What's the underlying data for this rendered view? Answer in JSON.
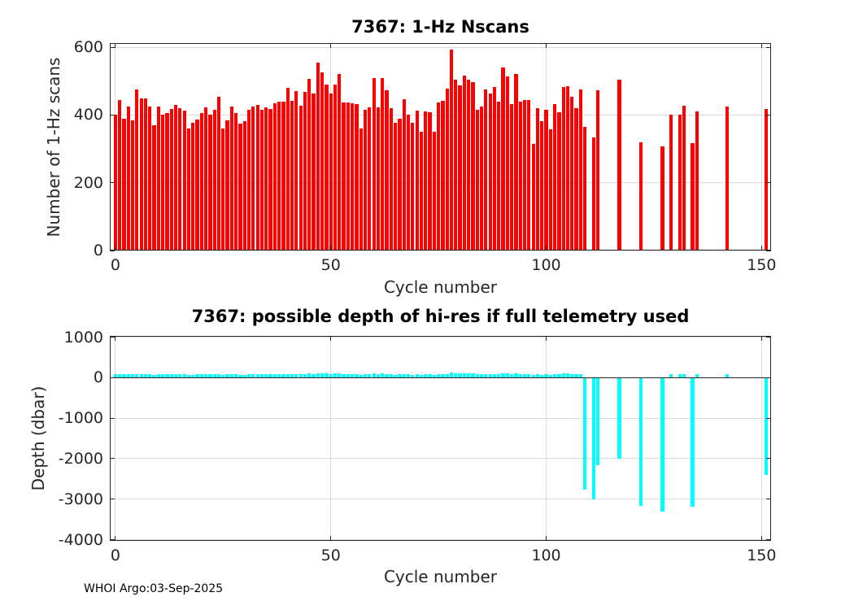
{
  "figure": {
    "footer": "WHOI Argo:03-Sep-2025",
    "colors": {
      "background": "#ffffff",
      "axis": "#262626",
      "grid": "#dbdbdb",
      "nscans_bar": "#ff0000",
      "depth_bar": "#00ffff"
    }
  },
  "chart_data": [
    {
      "type": "bar",
      "title": "7367: 1-Hz Nscans",
      "xlabel": "Cycle number",
      "ylabel": "Number of 1-Hz scans",
      "xlim": [
        -1.3,
        152.2
      ],
      "ylim": [
        0,
        612
      ],
      "xticks": [
        0,
        50,
        100,
        150
      ],
      "yticks": [
        0,
        200,
        400,
        600
      ],
      "grid": true,
      "legend": null,
      "bar_color": "#ff0000",
      "points": [
        [
          0,
          400
        ],
        [
          1,
          443
        ],
        [
          2,
          388
        ],
        [
          3,
          424
        ],
        [
          4,
          384
        ],
        [
          5,
          475
        ],
        [
          6,
          449
        ],
        [
          7,
          449
        ],
        [
          8,
          426
        ],
        [
          9,
          370
        ],
        [
          10,
          425
        ],
        [
          11,
          400
        ],
        [
          12,
          406
        ],
        [
          13,
          418
        ],
        [
          14,
          429
        ],
        [
          15,
          421
        ],
        [
          16,
          414
        ],
        [
          17,
          360
        ],
        [
          18,
          376
        ],
        [
          19,
          386
        ],
        [
          20,
          406
        ],
        [
          21,
          422
        ],
        [
          22,
          402
        ],
        [
          23,
          416
        ],
        [
          24,
          453
        ],
        [
          25,
          361
        ],
        [
          26,
          384
        ],
        [
          27,
          424
        ],
        [
          28,
          406
        ],
        [
          29,
          374
        ],
        [
          30,
          382
        ],
        [
          31,
          416
        ],
        [
          32,
          424
        ],
        [
          33,
          429
        ],
        [
          34,
          415
        ],
        [
          35,
          422
        ],
        [
          36,
          418
        ],
        [
          37,
          434
        ],
        [
          38,
          439
        ],
        [
          39,
          439
        ],
        [
          40,
          480
        ],
        [
          41,
          442
        ],
        [
          42,
          471
        ],
        [
          43,
          427
        ],
        [
          44,
          468
        ],
        [
          45,
          507
        ],
        [
          46,
          463
        ],
        [
          47,
          555
        ],
        [
          48,
          525
        ],
        [
          49,
          490
        ],
        [
          50,
          464
        ],
        [
          51,
          489
        ],
        [
          52,
          520
        ],
        [
          53,
          436
        ],
        [
          54,
          436
        ],
        [
          55,
          434
        ],
        [
          56,
          432
        ],
        [
          57,
          360
        ],
        [
          58,
          416
        ],
        [
          59,
          422
        ],
        [
          60,
          510
        ],
        [
          61,
          422
        ],
        [
          62,
          508
        ],
        [
          63,
          474
        ],
        [
          64,
          420
        ],
        [
          65,
          378
        ],
        [
          66,
          388
        ],
        [
          67,
          446
        ],
        [
          68,
          400
        ],
        [
          69,
          376
        ],
        [
          70,
          414
        ],
        [
          71,
          350
        ],
        [
          72,
          410
        ],
        [
          73,
          408
        ],
        [
          74,
          350
        ],
        [
          75,
          436
        ],
        [
          76,
          442
        ],
        [
          77,
          478
        ],
        [
          78,
          592
        ],
        [
          79,
          504
        ],
        [
          80,
          488
        ],
        [
          81,
          516
        ],
        [
          82,
          504
        ],
        [
          83,
          498
        ],
        [
          84,
          416
        ],
        [
          85,
          424
        ],
        [
          86,
          475
        ],
        [
          87,
          464
        ],
        [
          88,
          482
        ],
        [
          89,
          439
        ],
        [
          90,
          541
        ],
        [
          91,
          514
        ],
        [
          92,
          432
        ],
        [
          93,
          520
        ],
        [
          94,
          440
        ],
        [
          95,
          445
        ],
        [
          96,
          443
        ],
        [
          97,
          314
        ],
        [
          98,
          420
        ],
        [
          99,
          382
        ],
        [
          100,
          416
        ],
        [
          101,
          358
        ],
        [
          102,
          431
        ],
        [
          103,
          408
        ],
        [
          104,
          483
        ],
        [
          105,
          485
        ],
        [
          106,
          453
        ],
        [
          107,
          419
        ],
        [
          108,
          475
        ],
        [
          109,
          366
        ],
        [
          111,
          334
        ],
        [
          112,
          472
        ],
        [
          117,
          505
        ],
        [
          122,
          320
        ],
        [
          127,
          308
        ],
        [
          129,
          400
        ],
        [
          131,
          400
        ],
        [
          132,
          428
        ],
        [
          134,
          318
        ],
        [
          135,
          410
        ],
        [
          142,
          424
        ],
        [
          151,
          417
        ]
      ]
    },
    {
      "type": "bar",
      "title": "7367: possible depth of hi-res if full telemetry used",
      "xlabel": "Cycle number",
      "ylabel": "Depth (dbar)",
      "xlim": [
        -1.3,
        152.2
      ],
      "ylim": [
        -4030,
        1030
      ],
      "xticks": [
        0,
        50,
        100,
        150
      ],
      "yticks": [
        1000,
        0,
        -1000,
        -2000,
        -3000,
        -4000
      ],
      "grid": true,
      "legend": null,
      "bar_color": "#00ffff",
      "points": [
        [
          0,
          80
        ],
        [
          1,
          89
        ],
        [
          2,
          78
        ],
        [
          3,
          85
        ],
        [
          4,
          77
        ],
        [
          5,
          95
        ],
        [
          6,
          90
        ],
        [
          7,
          90
        ],
        [
          8,
          85
        ],
        [
          9,
          74
        ],
        [
          10,
          85
        ],
        [
          11,
          80
        ],
        [
          12,
          81
        ],
        [
          13,
          84
        ],
        [
          14,
          86
        ],
        [
          15,
          84
        ],
        [
          16,
          83
        ],
        [
          17,
          72
        ],
        [
          18,
          75
        ],
        [
          19,
          77
        ],
        [
          20,
          81
        ],
        [
          21,
          84
        ],
        [
          22,
          80
        ],
        [
          23,
          83
        ],
        [
          24,
          91
        ],
        [
          25,
          72
        ],
        [
          26,
          77
        ],
        [
          27,
          85
        ],
        [
          28,
          81
        ],
        [
          29,
          75
        ],
        [
          30,
          76
        ],
        [
          31,
          83
        ],
        [
          32,
          85
        ],
        [
          33,
          86
        ],
        [
          34,
          83
        ],
        [
          35,
          84
        ],
        [
          36,
          84
        ],
        [
          37,
          87
        ],
        [
          38,
          88
        ],
        [
          39,
          88
        ],
        [
          40,
          96
        ],
        [
          41,
          88
        ],
        [
          42,
          94
        ],
        [
          43,
          85
        ],
        [
          44,
          94
        ],
        [
          45,
          101
        ],
        [
          46,
          93
        ],
        [
          47,
          111
        ],
        [
          48,
          105
        ],
        [
          49,
          98
        ],
        [
          50,
          93
        ],
        [
          51,
          98
        ],
        [
          52,
          104
        ],
        [
          53,
          87
        ],
        [
          54,
          87
        ],
        [
          55,
          87
        ],
        [
          56,
          86
        ],
        [
          57,
          72
        ],
        [
          58,
          83
        ],
        [
          59,
          84
        ],
        [
          60,
          102
        ],
        [
          61,
          84
        ],
        [
          62,
          102
        ],
        [
          63,
          95
        ],
        [
          64,
          84
        ],
        [
          65,
          76
        ],
        [
          66,
          78
        ],
        [
          67,
          89
        ],
        [
          68,
          80
        ],
        [
          69,
          75
        ],
        [
          70,
          83
        ],
        [
          71,
          70
        ],
        [
          72,
          82
        ],
        [
          73,
          82
        ],
        [
          74,
          70
        ],
        [
          75,
          87
        ],
        [
          76,
          88
        ],
        [
          77,
          96
        ],
        [
          78,
          118
        ],
        [
          79,
          101
        ],
        [
          80,
          98
        ],
        [
          81,
          103
        ],
        [
          82,
          101
        ],
        [
          83,
          100
        ],
        [
          84,
          83
        ],
        [
          85,
          85
        ],
        [
          86,
          95
        ],
        [
          87,
          93
        ],
        [
          88,
          96
        ],
        [
          89,
          88
        ],
        [
          90,
          108
        ],
        [
          91,
          103
        ],
        [
          92,
          86
        ],
        [
          93,
          104
        ],
        [
          94,
          88
        ],
        [
          95,
          89
        ],
        [
          96,
          89
        ],
        [
          97,
          63
        ],
        [
          98,
          84
        ],
        [
          99,
          76
        ],
        [
          100,
          83
        ],
        [
          101,
          72
        ],
        [
          102,
          86
        ],
        [
          103,
          82
        ],
        [
          104,
          97
        ],
        [
          105,
          97
        ],
        [
          106,
          91
        ],
        [
          107,
          84
        ],
        [
          108,
          95
        ],
        [
          109,
          -2767
        ],
        [
          111,
          -3000
        ],
        [
          112,
          -2153
        ],
        [
          117,
          -2000
        ],
        [
          122,
          -3167
        ],
        [
          127,
          -3300
        ],
        [
          129,
          80
        ],
        [
          131,
          80
        ],
        [
          132,
          86
        ],
        [
          134,
          -3187
        ],
        [
          135,
          82
        ],
        [
          142,
          85
        ],
        [
          151,
          -2400
        ]
      ]
    }
  ]
}
